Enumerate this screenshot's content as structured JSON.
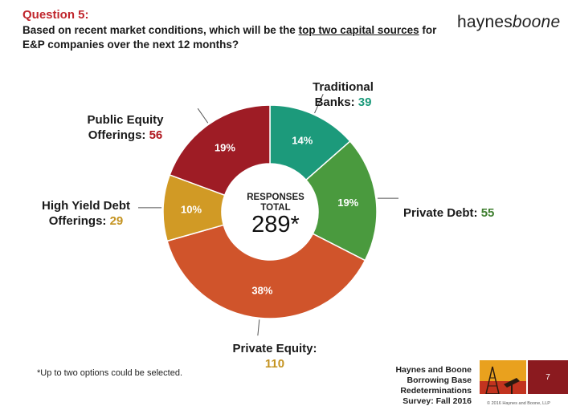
{
  "header": {
    "question_number": "Question 5:",
    "question_pre": "Based on recent market conditions, which will be the ",
    "question_underlined": "top two capital sources",
    "question_post": " for E&P companies over the next 12 months?"
  },
  "brand": {
    "logo_main": "haynes",
    "logo_italic": "boone"
  },
  "chart_data": {
    "type": "pie",
    "donut": true,
    "categories": [
      "Traditional Banks",
      "Private Debt",
      "Private Equity",
      "High Yield Debt Offerings",
      "Public Equity Offerings"
    ],
    "values": [
      39,
      55,
      110,
      29,
      56
    ],
    "percent_labels": [
      "14%",
      "19%",
      "38%",
      "10%",
      "19%"
    ],
    "colors": [
      "#1c9a7b",
      "#4a9a3e",
      "#d0542b",
      "#d19a25",
      "#9e1c25"
    ],
    "center_caption": [
      "RESPONSES",
      "TOTAL"
    ],
    "center_total": "289*",
    "slice_labels": [
      {
        "name_lines": [
          "Traditional",
          "Banks: "
        ],
        "value": "39",
        "value_color": "#1c9a7b"
      },
      {
        "name_lines": [
          "",
          "Private Debt: "
        ],
        "value": "55",
        "value_color": "#3d7d2d"
      },
      {
        "name_lines": [
          "Private Equity:",
          ""
        ],
        "value": "110",
        "value_color": "#c49320"
      },
      {
        "name_lines": [
          "High Yield Debt",
          "Offerings: "
        ],
        "value": "29",
        "value_color": "#c49320"
      },
      {
        "name_lines": [
          "Public Equity",
          "Offerings: "
        ],
        "value": "56",
        "value_color": "#b0161e"
      }
    ]
  },
  "footnote": "*Up to two options could be selected.",
  "footer": {
    "source_line1": "Haynes and Boone",
    "source_line2": "Borrowing Base Redeterminations",
    "source_line3": "Survey: Fall 2016",
    "page_number": "7",
    "copyright": "© 2016 Haynes and Boone, LLP"
  }
}
